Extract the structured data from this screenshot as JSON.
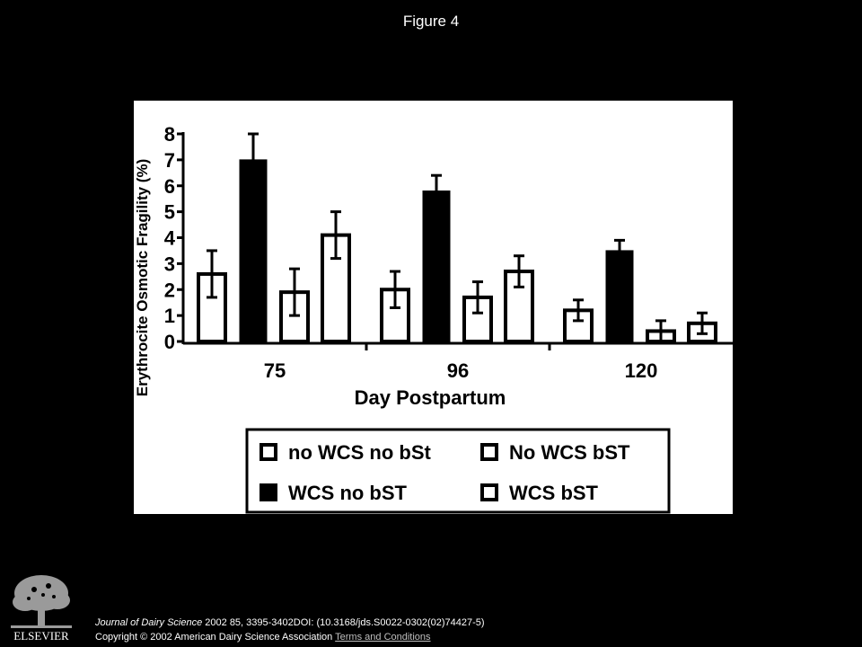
{
  "figure": {
    "title": "Figure 4"
  },
  "chart_data": {
    "type": "bar",
    "ylabel": "Erythrocite Osmotic Fragility (%)",
    "xlabel": "Day Postpartum",
    "ylim": [
      0,
      8
    ],
    "yticks": [
      "0",
      "1",
      "2",
      "3",
      "4",
      "5",
      "6",
      "7",
      "8"
    ],
    "categories": [
      "75",
      "96",
      "120"
    ],
    "series": [
      {
        "name": "no WCS no bSt",
        "fill": "open",
        "values": [
          2.6,
          2.0,
          1.2
        ],
        "errors": [
          0.9,
          0.7,
          0.4
        ]
      },
      {
        "name": "WCS no bST",
        "fill": "solid",
        "values": [
          7.0,
          5.8,
          3.5
        ],
        "errors": [
          1.0,
          0.6,
          0.4
        ]
      },
      {
        "name": "No WCS bST",
        "fill": "open",
        "values": [
          1.9,
          1.7,
          0.4
        ],
        "errors": [
          0.9,
          0.6,
          0.4
        ]
      },
      {
        "name": "WCS bST",
        "fill": "open",
        "values": [
          4.1,
          2.7,
          0.7
        ],
        "errors": [
          0.9,
          0.6,
          0.4
        ]
      }
    ],
    "legend": {
      "position": "bottom-right",
      "rows": [
        [
          "no WCS no bSt",
          "No WCS bST"
        ],
        [
          "WCS no bST",
          "WCS bST"
        ]
      ]
    }
  },
  "footer": {
    "journal": "Journal of Dairy Science",
    "citation": " 2002 85, 3395-3402DOI: (10.3168/jds.S0022-0302(02)74427-5)",
    "copyright": "Copyright © 2002 American Dairy Science Association ",
    "terms_link": "Terms and Conditions",
    "logo_text": "ELSEVIER"
  }
}
